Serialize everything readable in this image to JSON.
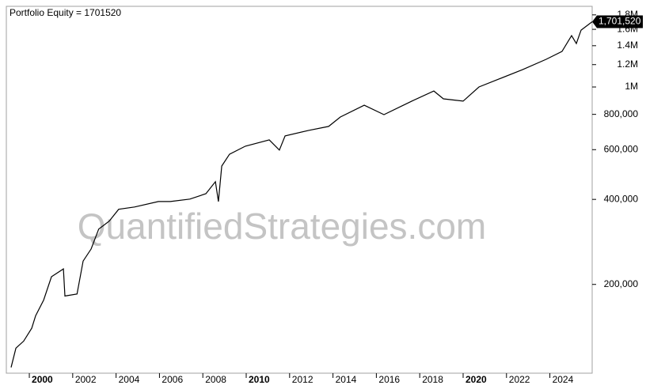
{
  "chart_data": {
    "type": "line",
    "title": "Portfolio Equity = 1701520",
    "watermark": "QuantifiedStrategies.com",
    "log_scale": true,
    "xlim": [
      1998.94,
      2025.95
    ],
    "ylim": [
      97000,
      1930000
    ],
    "xticks": [
      2000,
      2002,
      2004,
      2006,
      2008,
      2010,
      2012,
      2014,
      2016,
      2018,
      2020,
      2022,
      2024
    ],
    "yticks": [
      {
        "value": 200000,
        "label": "200,000"
      },
      {
        "value": 400000,
        "label": "400,000"
      },
      {
        "value": 600000,
        "label": "600,000"
      },
      {
        "value": 800000,
        "label": "800,000"
      },
      {
        "value": 1000000,
        "label": "1M"
      },
      {
        "value": 1200000,
        "label": "1.2M"
      },
      {
        "value": 1400000,
        "label": "1.4M"
      },
      {
        "value": 1600000,
        "label": "1.6M"
      },
      {
        "value": 1800000,
        "label": "1.8M"
      }
    ],
    "series": [
      {
        "name": "Portfolio Equity",
        "color": "#000000",
        "x": [
          1999.16,
          1999.38,
          1999.74,
          2000.11,
          2000.29,
          2000.66,
          2001.02,
          2001.57,
          2001.64,
          2002.2,
          2002.48,
          2002.85,
          2003.2,
          2003.68,
          2004.12,
          2004.85,
          2005.95,
          2006.5,
          2007.4,
          2008.14,
          2008.58,
          2008.72,
          2008.87,
          2009.23,
          2009.96,
          2011.06,
          2011.53,
          2011.79,
          2012.88,
          2013.8,
          2014.34,
          2015.44,
          2016.35,
          2017.63,
          2018.65,
          2019.09,
          2020.0,
          2020.73,
          2021.64,
          2022.74,
          2023.83,
          2024.56,
          2025.0,
          2025.22,
          2025.44,
          2025.95
        ],
        "values": [
          101700,
          119000,
          126000,
          140000,
          155000,
          176000,
          213000,
          227000,
          182000,
          185000,
          242000,
          267000,
          314000,
          335000,
          369000,
          376000,
          393000,
          393000,
          401000,
          419000,
          462000,
          393000,
          525000,
          578000,
          617000,
          650000,
          598000,
          671000,
          702000,
          725000,
          783000,
          862000,
          798000,
          891000,
          968000,
          908000,
          891000,
          1000000,
          1066000,
          1152000,
          1253000,
          1336000,
          1520000,
          1425000,
          1590000,
          1701520
        ],
        "value_labels": [
          null,
          null,
          null,
          null,
          null,
          null,
          null,
          null,
          null,
          null,
          null,
          null,
          null,
          null,
          null,
          null,
          null,
          null,
          null,
          null,
          null,
          null,
          null,
          null,
          null,
          null,
          null,
          null,
          null,
          null,
          null,
          null,
          null,
          null,
          null,
          null,
          null,
          null,
          null,
          null,
          null,
          null,
          null,
          null,
          null,
          "1,701,520"
        ]
      }
    ]
  }
}
